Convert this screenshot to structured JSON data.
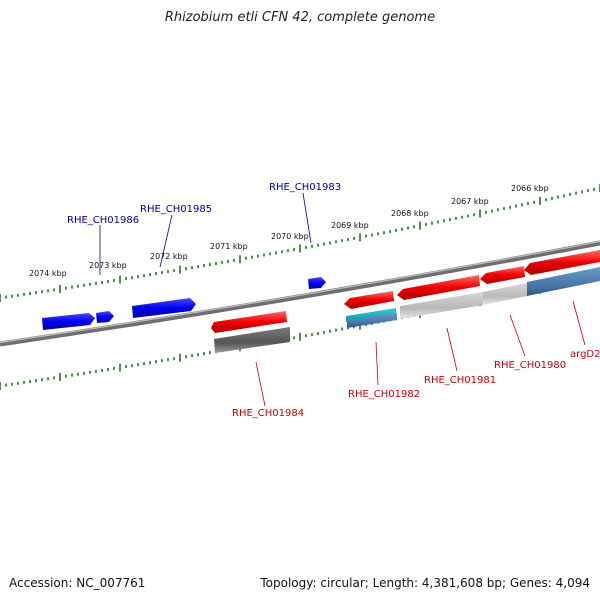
{
  "title": "Rhizobium etli CFN 42, complete genome",
  "footer": {
    "accession": "Accession: NC_007761",
    "topology": "Topology: circular; Length: 4,381,608 bp; Genes: 4,094"
  },
  "colors": {
    "forward_gene": "#0000ee",
    "reverse_gene": "#ee0000",
    "backbone": "#808080",
    "tick": "#1a7a1a",
    "forward_label": "#000099",
    "reverse_label": "#cc0000",
    "teal": "#20b0c0",
    "steelblue": "#4a78a8",
    "gray_dark": "#555555",
    "gray_light": "#bdbdbd"
  },
  "ticks": [
    "2074 kbp",
    "2073 kbp",
    "2072 kbp",
    "2071 kbp",
    "2070 kbp",
    "2069 kbp",
    "2068 kbp",
    "2067 kbp",
    "2066 kbp"
  ],
  "labels_forward": [
    "RHE_CH01986",
    "RHE_CH01985",
    "RHE_CH01983"
  ],
  "labels_reverse": [
    "RHE_CH01984",
    "RHE_CH01982",
    "RHE_CH01981",
    "RHE_CH01980",
    "argD2"
  ]
}
